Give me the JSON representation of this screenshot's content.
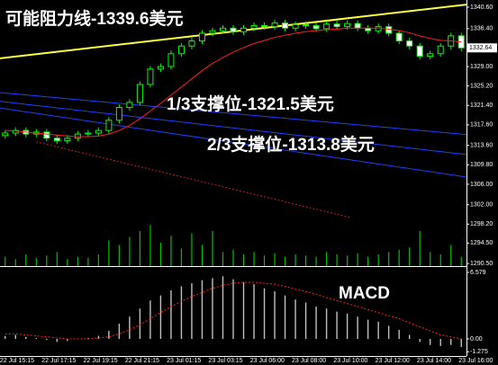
{
  "chart_data": {
    "type": "candlestick",
    "annotations": [
      "可能阻力线-1339.6美元",
      "1/3支撑位-1321.5美元",
      "2/3支撑位-1313.8美元"
    ],
    "x_labels": [
      "22 Jul 15:15",
      "22 Jul 17:15",
      "22 Jul 19:15",
      "22 Jul 21:15",
      "23 Jul 01:15",
      "23 Jul 03:15",
      "23 Jul 06:00",
      "23 Jul 08:00",
      "23 Jul 10:00",
      "23 Jul 12:00",
      "23 Jul 14:00",
      "23 Jul 16:00"
    ],
    "ylim": [
      1290.0,
      1342.0
    ],
    "yticks": [
      {
        "value": 1340.6,
        "label": "1340.60"
      },
      {
        "value": 1336.4,
        "label": "1336.40"
      },
      {
        "value": 1329.0,
        "label": "1329.00"
      },
      {
        "value": 1325.2,
        "label": "1325.20"
      },
      {
        "value": 1321.4,
        "label": "1321.40"
      },
      {
        "value": 1317.6,
        "label": "1317.60"
      },
      {
        "value": 1313.6,
        "label": "1313.60"
      },
      {
        "value": 1309.8,
        "label": "1309.80"
      },
      {
        "value": 1306.0,
        "label": "1306.00"
      },
      {
        "value": 1302.0,
        "label": "1302.00"
      },
      {
        "value": 1298.2,
        "label": "1298.20"
      },
      {
        "value": 1294.5,
        "label": "1294.50"
      },
      {
        "value": 1290.5,
        "label": "1290.50"
      }
    ],
    "current_price": {
      "value": 1332.64,
      "label": "1332.64"
    },
    "color": "#00ff00",
    "open": [
      1315.5,
      1316.0,
      1316.5,
      1315.8,
      1316.2,
      1315.0,
      1314.5,
      1315.0,
      1315.8,
      1316.0,
      1316.5,
      1318.5,
      1321.0,
      1322.0,
      1325.5,
      1328.5,
      1329.0,
      1331.5,
      1333.0,
      1334.0,
      1335.5,
      1336.0,
      1336.5,
      1335.8,
      1336.5,
      1337.0,
      1336.8,
      1337.5,
      1336.5,
      1337.2,
      1337.0,
      1336.4,
      1337.3,
      1336.8,
      1337.4,
      1336.5,
      1336.0,
      1336.8,
      1335.5,
      1334.0,
      1333.0,
      1331.0,
      1331.5,
      1333.0,
      1335.0
    ],
    "high": [
      1316.6,
      1317.1,
      1317.1,
      1316.8,
      1316.8,
      1315.6,
      1315.6,
      1316.4,
      1316.6,
      1317.1,
      1319.1,
      1321.6,
      1322.6,
      1326.1,
      1329.1,
      1329.6,
      1332.1,
      1333.6,
      1334.6,
      1336.1,
      1336.6,
      1337.1,
      1337.1,
      1337.1,
      1337.6,
      1337.6,
      1338.1,
      1338.1,
      1337.8,
      1337.8,
      1337.6,
      1337.9,
      1337.9,
      1338.0,
      1338.0,
      1337.1,
      1337.4,
      1337.4,
      1336.1,
      1334.6,
      1333.6,
      1332.1,
      1333.6,
      1335.6,
      1335.6
    ],
    "low": [
      1314.9,
      1315.4,
      1315.2,
      1315.2,
      1314.4,
      1313.9,
      1313.9,
      1314.4,
      1315.2,
      1315.4,
      1315.9,
      1317.9,
      1320.4,
      1321.4,
      1324.9,
      1327.9,
      1328.4,
      1330.9,
      1332.4,
      1333.4,
      1334.9,
      1335.4,
      1335.2,
      1335.2,
      1335.9,
      1336.2,
      1336.2,
      1335.9,
      1335.9,
      1336.4,
      1335.8,
      1335.8,
      1336.2,
      1336.2,
      1335.9,
      1335.4,
      1335.4,
      1334.9,
      1333.4,
      1332.4,
      1330.4,
      1330.4,
      1330.9,
      1332.4,
      1332.0
    ],
    "close": [
      1316.0,
      1316.5,
      1315.8,
      1316.2,
      1315.0,
      1314.5,
      1315.0,
      1315.8,
      1316.0,
      1316.5,
      1318.5,
      1321.0,
      1322.0,
      1325.5,
      1328.5,
      1329.0,
      1331.5,
      1333.0,
      1334.0,
      1335.5,
      1336.0,
      1336.5,
      1335.8,
      1336.5,
      1337.0,
      1336.8,
      1337.5,
      1336.5,
      1337.2,
      1337.0,
      1336.4,
      1337.3,
      1336.8,
      1337.4,
      1336.5,
      1336.0,
      1336.8,
      1335.5,
      1334.0,
      1333.0,
      1331.0,
      1331.5,
      1333.0,
      1335.0,
      1332.64
    ],
    "moving_average": {
      "color": "#ff2020",
      "values": [
        1316.5,
        1316.4,
        1316.2,
        1316.0,
        1315.8,
        1315.6,
        1315.4,
        1315.3,
        1315.3,
        1315.4,
        1315.8,
        1316.5,
        1317.5,
        1318.8,
        1320.3,
        1321.8,
        1323.4,
        1325.0,
        1326.6,
        1328.2,
        1329.6,
        1330.8,
        1331.8,
        1332.7,
        1333.5,
        1334.1,
        1334.7,
        1335.1,
        1335.5,
        1335.8,
        1336.0,
        1336.2,
        1336.3,
        1336.5,
        1336.5,
        1336.5,
        1336.5,
        1336.3,
        1336.0,
        1335.6,
        1335.0,
        1334.5,
        1334.1,
        1334.0,
        1333.8
      ]
    },
    "trend_lines": [
      {
        "color": "#ffff40",
        "x": [
          -0.5,
          44.5
        ],
        "values": [
          1330.6,
          1341.1
        ]
      },
      {
        "color": "#2040ff",
        "x": [
          -0.5,
          44.5
        ],
        "values": [
          1323.9,
          1315.7
        ]
      },
      {
        "color": "#2040ff",
        "x": [
          -0.5,
          44.5
        ],
        "values": [
          1322.2,
          1311.8
        ]
      },
      {
        "color": "#2040ff",
        "x": [
          -0.5,
          44.5
        ],
        "values": [
          1320.9,
          1307.4
        ]
      },
      {
        "color": "#c02020",
        "x": [
          3,
          33.3
        ],
        "values": [
          1314.3,
          1299.5
        ]
      }
    ],
    "volume": {
      "color": "#00c000",
      "values": [
        8,
        6,
        10,
        7,
        9,
        12,
        6,
        8,
        7,
        10,
        22,
        18,
        25,
        30,
        35,
        20,
        26,
        15,
        28,
        18,
        30,
        12,
        14,
        10,
        12,
        9,
        11,
        8,
        10,
        9,
        8,
        12,
        10,
        9,
        11,
        8,
        10,
        12,
        14,
        16,
        30,
        12,
        10,
        18,
        8
      ]
    },
    "macd": {
      "title": "MACD",
      "ylim": [
        -1.69,
        7.02
      ],
      "yticks": [
        6.579,
        {
          "value": 0,
          "label": "0.00"
        },
        -1.275
      ],
      "histogram": {
        "color": "#c0c0c0",
        "values": [
          0.3,
          0.4,
          0.2,
          0.1,
          -0.1,
          -0.3,
          -0.2,
          0.0,
          0.1,
          0.3,
          0.8,
          1.5,
          2.2,
          3.0,
          3.8,
          4.3,
          4.8,
          5.2,
          5.5,
          5.8,
          6.0,
          6.2,
          5.9,
          5.6,
          5.4,
          5.0,
          4.7,
          4.3,
          3.9,
          3.6,
          3.2,
          3.0,
          2.7,
          2.5,
          2.2,
          1.9,
          1.7,
          1.3,
          0.9,
          0.4,
          -0.3,
          -0.6,
          -0.7,
          -0.6,
          -0.8
        ]
      },
      "signal": {
        "color": "#ff2020",
        "values": [
          0.5,
          0.5,
          0.4,
          0.3,
          0.2,
          0.1,
          0.0,
          0.0,
          0.0,
          0.1,
          0.2,
          0.5,
          0.9,
          1.4,
          2.0,
          2.6,
          3.2,
          3.7,
          4.2,
          4.6,
          5.0,
          5.3,
          5.5,
          5.6,
          5.6,
          5.5,
          5.4,
          5.2,
          4.9,
          4.7,
          4.4,
          4.1,
          3.8,
          3.5,
          3.2,
          2.9,
          2.6,
          2.3,
          2.0,
          1.6,
          1.2,
          0.8,
          0.4,
          0.2,
          0.0
        ]
      }
    }
  }
}
